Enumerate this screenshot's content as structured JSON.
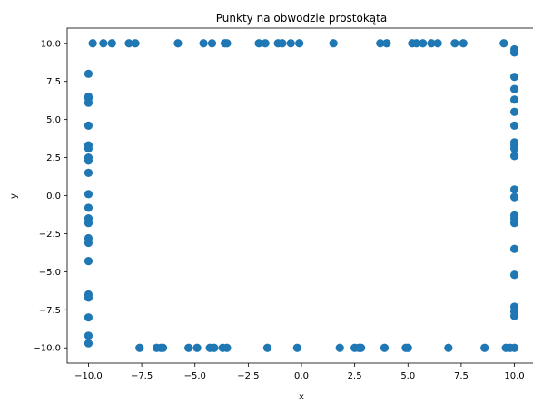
{
  "chart_data": {
    "type": "scatter",
    "title": "Punkty na obwodzie prostokąta",
    "xlabel": "x",
    "ylabel": "y",
    "xlim": [
      -11,
      11
    ],
    "ylim": [
      -11,
      11
    ],
    "grid": false,
    "marker_color": "#1f77b4",
    "x_ticks": [
      -10,
      -7.5,
      -5,
      -2.5,
      0,
      2.5,
      5,
      7.5,
      10
    ],
    "x_tick_labels": [
      "−10.0",
      "−7.5",
      "−5.0",
      "−2.5",
      "0.0",
      "2.5",
      "5.0",
      "7.5",
      "10.0"
    ],
    "y_ticks": [
      -10,
      -7.5,
      -5,
      -2.5,
      0,
      2.5,
      5,
      7.5,
      10
    ],
    "y_tick_labels": [
      "−10.0",
      "−7.5",
      "−5.0",
      "−2.5",
      "0.0",
      "2.5",
      "5.0",
      "7.5",
      "10.0"
    ],
    "points": [
      [
        -9.8,
        10
      ],
      [
        -9.3,
        10
      ],
      [
        -8.9,
        10
      ],
      [
        -8.1,
        10
      ],
      [
        -7.8,
        10
      ],
      [
        -5.8,
        10
      ],
      [
        -4.6,
        10
      ],
      [
        -4.2,
        10
      ],
      [
        -3.6,
        10
      ],
      [
        -3.5,
        10
      ],
      [
        -2.0,
        10
      ],
      [
        -1.7,
        10
      ],
      [
        -1.1,
        10
      ],
      [
        -0.9,
        10
      ],
      [
        -0.5,
        10
      ],
      [
        -0.1,
        10
      ],
      [
        1.5,
        10
      ],
      [
        3.7,
        10
      ],
      [
        4.0,
        10
      ],
      [
        5.2,
        10
      ],
      [
        5.4,
        10
      ],
      [
        5.7,
        10
      ],
      [
        6.1,
        10
      ],
      [
        6.4,
        10
      ],
      [
        7.2,
        10
      ],
      [
        7.6,
        10
      ],
      [
        9.5,
        10
      ],
      [
        10,
        9.6
      ],
      [
        10,
        9.4
      ],
      [
        10,
        7.8
      ],
      [
        10,
        7.0
      ],
      [
        10,
        6.3
      ],
      [
        10,
        5.5
      ],
      [
        10,
        4.6
      ],
      [
        10,
        3.5
      ],
      [
        10,
        3.3
      ],
      [
        10,
        3.1
      ],
      [
        10,
        2.6
      ],
      [
        10,
        0.4
      ],
      [
        10,
        -0.1
      ],
      [
        10,
        -1.3
      ],
      [
        10,
        -1.5
      ],
      [
        10,
        -1.8
      ],
      [
        10,
        -3.5
      ],
      [
        10,
        -5.2
      ],
      [
        10,
        -7.3
      ],
      [
        10,
        -7.6
      ],
      [
        10,
        -7.9
      ],
      [
        -10,
        8.0
      ],
      [
        -10,
        6.5
      ],
      [
        -10,
        6.4
      ],
      [
        -10,
        6.1
      ],
      [
        -10,
        4.6
      ],
      [
        -10,
        3.3
      ],
      [
        -10,
        3.1
      ],
      [
        -10,
        2.5
      ],
      [
        -10,
        2.3
      ],
      [
        -10,
        1.5
      ],
      [
        -10,
        0.1
      ],
      [
        -10,
        -0.8
      ],
      [
        -10,
        -1.5
      ],
      [
        -10,
        -1.8
      ],
      [
        -10,
        -2.8
      ],
      [
        -10,
        -3.1
      ],
      [
        -10,
        -4.3
      ],
      [
        -10,
        -6.5
      ],
      [
        -10,
        -6.7
      ],
      [
        -10,
        -8.0
      ],
      [
        -10,
        -9.2
      ],
      [
        -10,
        -9.7
      ],
      [
        -7.6,
        -10
      ],
      [
        -6.8,
        -10
      ],
      [
        -6.6,
        -10
      ],
      [
        -6.5,
        -10
      ],
      [
        -5.3,
        -10
      ],
      [
        -4.9,
        -10
      ],
      [
        -4.3,
        -10
      ],
      [
        -4.1,
        -10
      ],
      [
        -3.7,
        -10
      ],
      [
        -3.5,
        -10
      ],
      [
        -1.6,
        -10
      ],
      [
        -0.2,
        -10
      ],
      [
        1.8,
        -10
      ],
      [
        2.5,
        -10
      ],
      [
        2.7,
        -10
      ],
      [
        2.8,
        -10
      ],
      [
        3.9,
        -10
      ],
      [
        4.9,
        -10
      ],
      [
        5.0,
        -10
      ],
      [
        6.9,
        -10
      ],
      [
        8.6,
        -10
      ],
      [
        9.6,
        -10
      ],
      [
        9.8,
        -10
      ],
      [
        10.0,
        -10
      ]
    ]
  }
}
